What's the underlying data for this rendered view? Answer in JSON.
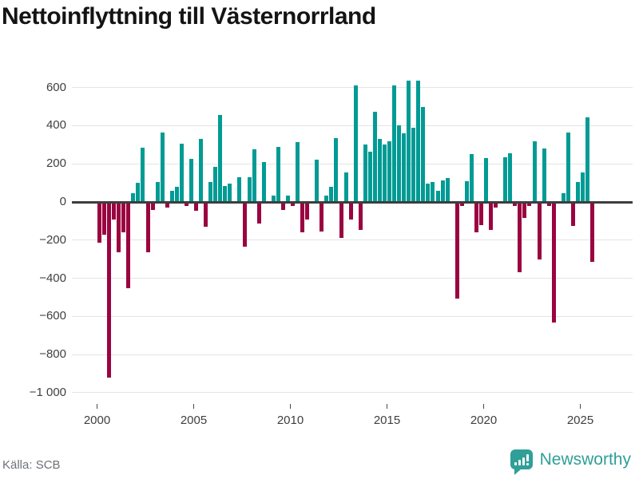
{
  "title": "Nettoinflyttning till Västernorrland",
  "source": "Källa: SCB",
  "brand": {
    "name": "Newsworthy"
  },
  "colors": {
    "positive": "#009b94",
    "negative": "#9a0440",
    "gridline": "#e4e4e4",
    "zeroline": "#3d3d3d",
    "axis_text": "#3f3f3f",
    "title_text": "#141414",
    "source_text": "#6d7278",
    "brand_teal": "#2f9f98"
  },
  "chart_data": {
    "type": "bar",
    "title": "Nettoinflyttning till Västernorrland",
    "xlabel": "",
    "ylabel": "",
    "ylim": [
      -1000,
      650
    ],
    "grid": true,
    "legend": "none",
    "y_ticks": [
      600,
      400,
      200,
      0,
      -200,
      -400,
      -600,
      -800,
      -1000
    ],
    "y_tick_labels": [
      "600",
      "400",
      "200",
      "0",
      "−200",
      "−400",
      "−600",
      "−800",
      "−1 000"
    ],
    "x_ticks": [
      2000,
      2005,
      2010,
      2015,
      2020,
      2025
    ],
    "x_tick_labels": [
      "2000",
      "2005",
      "2010",
      "2015",
      "2020",
      "2025"
    ],
    "series_name": "Nettoinflyttning per kvartal",
    "quarterly_values_by_year": [
      {
        "year": 2000,
        "values": [
          -215,
          -170,
          -920,
          -90
        ]
      },
      {
        "year": 2001,
        "values": [
          -265,
          -160,
          -450,
          45
        ]
      },
      {
        "year": 2002,
        "values": [
          100,
          285,
          -265,
          -40
        ]
      },
      {
        "year": 2003,
        "values": [
          105,
          365,
          -30,
          60
        ]
      },
      {
        "year": 2004,
        "values": [
          80,
          305,
          -20,
          225
        ]
      },
      {
        "year": 2005,
        "values": [
          -45,
          330,
          -130,
          105
        ]
      },
      {
        "year": 2006,
        "values": [
          185,
          455,
          85,
          95
        ]
      },
      {
        "year": 2007,
        "values": [
          0,
          130,
          -235,
          130
        ]
      },
      {
        "year": 2008,
        "values": [
          275,
          -115,
          210,
          0
        ]
      },
      {
        "year": 2009,
        "values": [
          35,
          290,
          -40,
          35
        ]
      },
      {
        "year": 2010,
        "values": [
          -20,
          315,
          -160,
          -90
        ]
      },
      {
        "year": 2011,
        "values": [
          0,
          220,
          -155,
          35
        ]
      },
      {
        "year": 2012,
        "values": [
          80,
          335,
          -190,
          155
        ]
      },
      {
        "year": 2013,
        "values": [
          -90,
          610,
          -145,
          300
        ]
      },
      {
        "year": 2014,
        "values": [
          265,
          475,
          330,
          300
        ]
      },
      {
        "year": 2015,
        "values": [
          320,
          610,
          400,
          360
        ]
      },
      {
        "year": 2016,
        "values": [
          635,
          390,
          635,
          500
        ]
      },
      {
        "year": 2017,
        "values": [
          95,
          105,
          60,
          115
        ]
      },
      {
        "year": 2018,
        "values": [
          125,
          0,
          -505,
          -20
        ]
      },
      {
        "year": 2019,
        "values": [
          110,
          250,
          -160,
          -120
        ]
      },
      {
        "year": 2020,
        "values": [
          230,
          -145,
          -30,
          0
        ]
      },
      {
        "year": 2021,
        "values": [
          235,
          255,
          -20,
          -370
        ]
      },
      {
        "year": 2022,
        "values": [
          -85,
          -20,
          320,
          -300
        ]
      },
      {
        "year": 2023,
        "values": [
          280,
          -20,
          -630,
          0
        ]
      },
      {
        "year": 2024,
        "values": [
          45,
          365,
          -125,
          105
        ]
      },
      {
        "year": 2025,
        "values": [
          155,
          445,
          -315
        ]
      }
    ]
  }
}
